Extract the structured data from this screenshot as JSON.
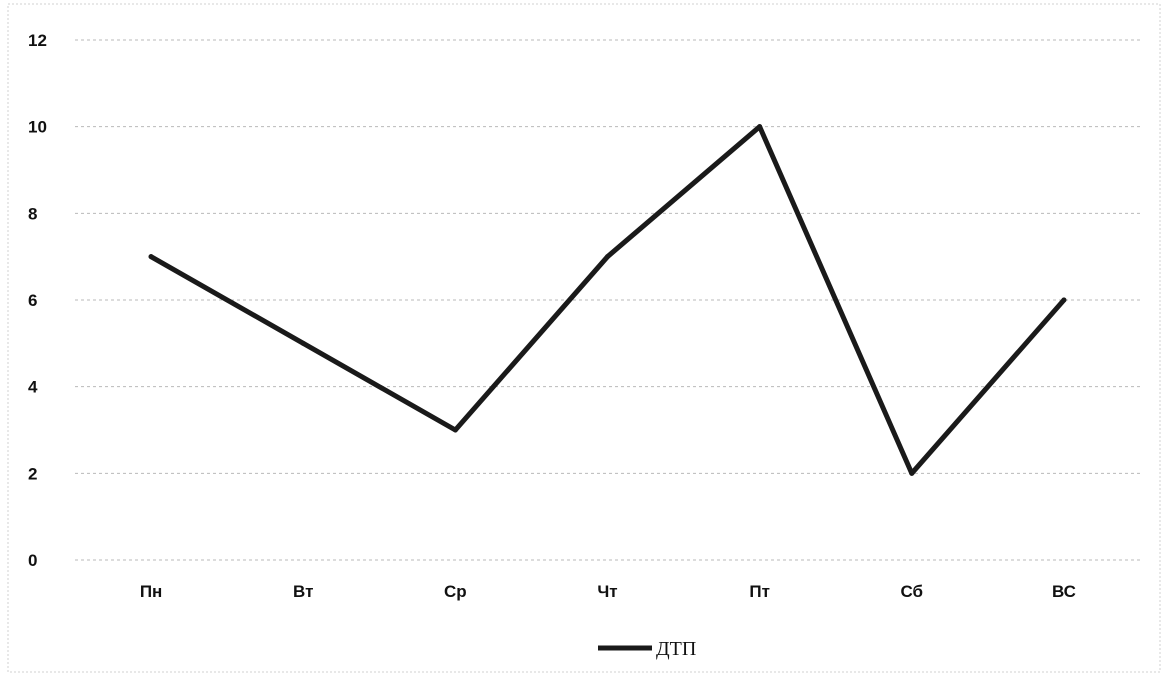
{
  "chart_data": {
    "type": "line",
    "categories": [
      "Пн",
      "Вт",
      "Ср",
      "Чт",
      "Пт",
      "Сб",
      "ВС"
    ],
    "series": [
      {
        "name": "ДТП",
        "values": [
          7,
          5,
          3,
          7,
          10,
          2,
          6
        ]
      }
    ],
    "ylim": [
      0,
      12
    ],
    "yticks": [
      0,
      2,
      4,
      6,
      8,
      10,
      12
    ],
    "grid": true,
    "legend": "bottom",
    "line_color": "#1a1a1a"
  }
}
